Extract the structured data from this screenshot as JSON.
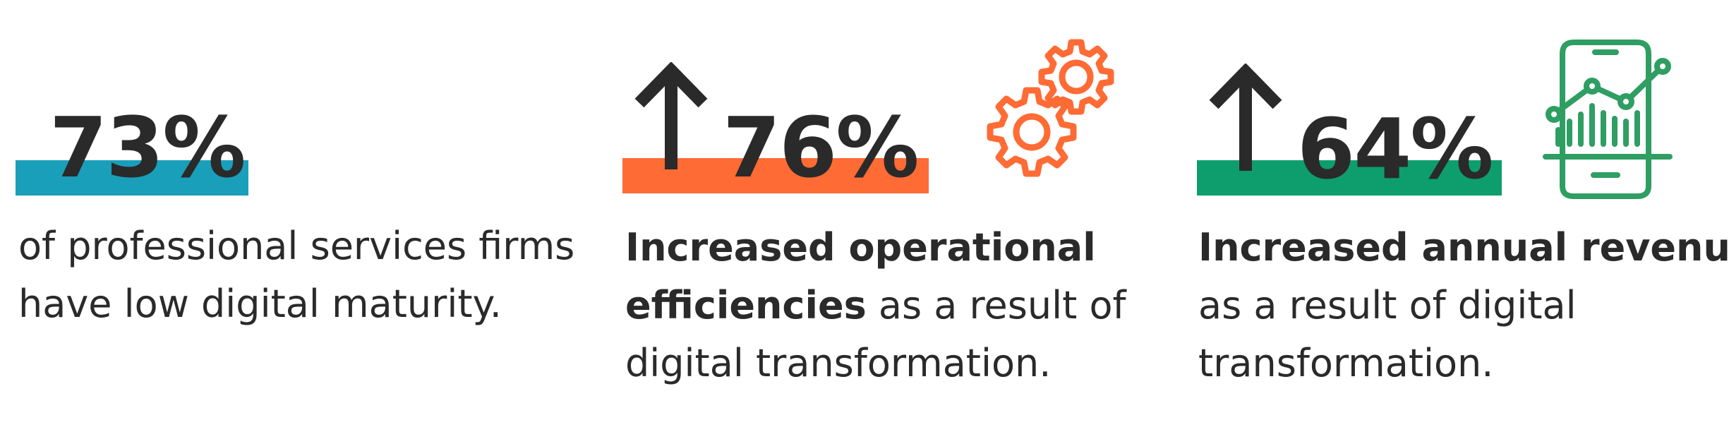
{
  "stats": [
    {
      "percent": "73%",
      "bar_color": "#1a9fba",
      "description_lines": [
        "of professional services firms",
        "have low digital maturity."
      ]
    },
    {
      "percent": "76%",
      "bar_color": "#ff6b35",
      "icon": "gears-icon",
      "icon_color": "#ff6b35",
      "arrow": "up-arrow-icon",
      "description_bold_1": "Increased operational",
      "description_bold_2": "efficiencies",
      "description_rest_2": " as a result of",
      "description_line_3": "digital transformation."
    },
    {
      "percent": "64%",
      "bar_color": "#0e9e6e",
      "icon": "mobile-analytics-icon",
      "icon_color": "#2f9e63",
      "arrow": "up-arrow-icon",
      "description_bold_1": "Increased annual revenue",
      "description_line_2": "as a result of digital",
      "description_line_3": "transformation."
    }
  ]
}
